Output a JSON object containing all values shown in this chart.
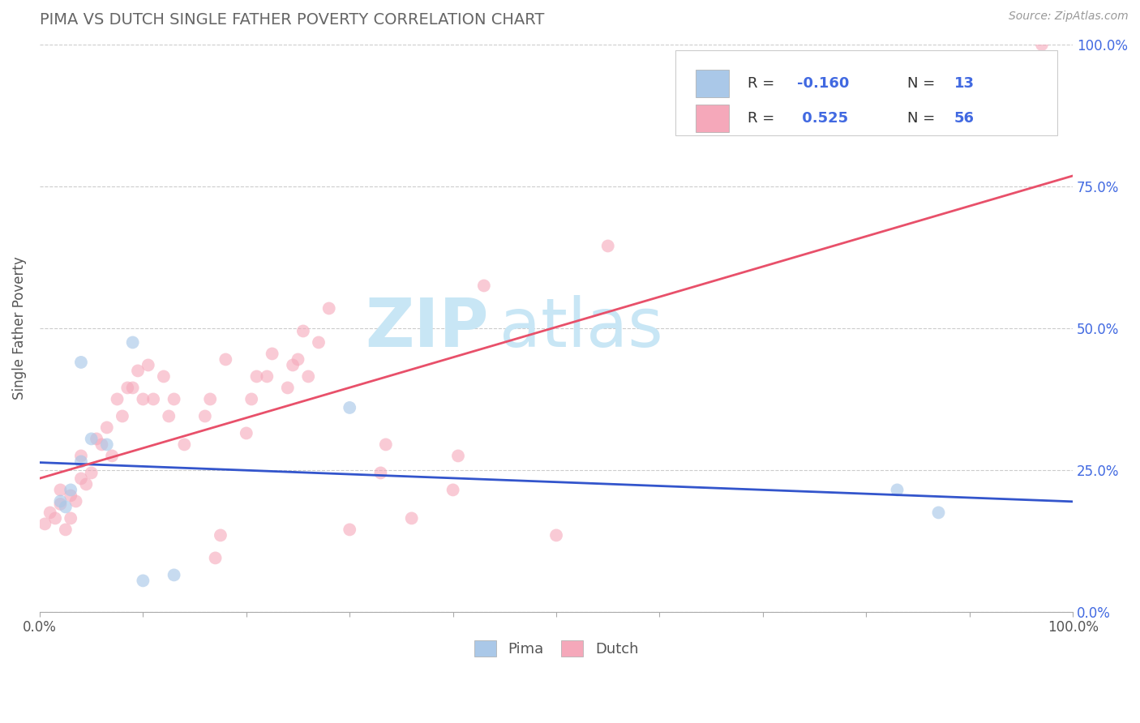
{
  "title": "PIMA VS DUTCH SINGLE FATHER POVERTY CORRELATION CHART",
  "source_text": "Source: ZipAtlas.com",
  "ylabel": "Single Father Poverty",
  "xlim": [
    0.0,
    1.0
  ],
  "ylim": [
    0.0,
    1.0
  ],
  "xtick_positions": [
    0.0,
    0.1,
    0.2,
    0.3,
    0.4,
    0.5,
    0.6,
    0.7,
    0.8,
    0.9,
    1.0
  ],
  "xtick_labels_show": [
    "0.0%",
    "",
    "",
    "",
    "",
    "",
    "",
    "",
    "",
    "",
    "100.0%"
  ],
  "ytick_positions": [
    0.0,
    0.25,
    0.5,
    0.75,
    1.0
  ],
  "ytick_labels_right": [
    "0.0%",
    "25.0%",
    "50.0%",
    "75.0%",
    "100.0%"
  ],
  "title_color": "#666666",
  "title_fontsize": 14,
  "background_color": "#ffffff",
  "grid_color": "#cccccc",
  "watermark_zip": "ZIP",
  "watermark_atlas": "atlas",
  "watermark_color": "#c8e6f5",
  "legend_R_pima": "-0.160",
  "legend_N_pima": "13",
  "legend_R_dutch": " 0.525",
  "legend_N_dutch": "56",
  "legend_value_color": "#4169e1",
  "legend_label_color": "#333333",
  "pima_color": "#aac8e8",
  "dutch_color": "#f5a8ba",
  "pima_line_color": "#3355cc",
  "dutch_line_color": "#e8506a",
  "marker_size": 130,
  "pima_alpha": 0.65,
  "dutch_alpha": 0.6,
  "right_tick_color": "#4169e1",
  "pima_scatter_x": [
    0.02,
    0.03,
    0.04,
    0.025,
    0.05,
    0.065,
    0.04,
    0.09,
    0.1,
    0.13,
    0.83,
    0.87,
    0.3
  ],
  "pima_scatter_y": [
    0.195,
    0.215,
    0.265,
    0.185,
    0.305,
    0.295,
    0.44,
    0.475,
    0.055,
    0.065,
    0.215,
    0.175,
    0.36
  ],
  "dutch_scatter_x": [
    0.005,
    0.01,
    0.015,
    0.02,
    0.02,
    0.025,
    0.03,
    0.03,
    0.035,
    0.04,
    0.04,
    0.045,
    0.05,
    0.055,
    0.06,
    0.065,
    0.07,
    0.075,
    0.08,
    0.085,
    0.09,
    0.095,
    0.1,
    0.105,
    0.11,
    0.12,
    0.125,
    0.13,
    0.14,
    0.16,
    0.165,
    0.17,
    0.175,
    0.18,
    0.2,
    0.205,
    0.21,
    0.22,
    0.225,
    0.24,
    0.245,
    0.25,
    0.255,
    0.26,
    0.27,
    0.28,
    0.3,
    0.33,
    0.335,
    0.36,
    0.4,
    0.405,
    0.43,
    0.5,
    0.55,
    0.97
  ],
  "dutch_scatter_y": [
    0.155,
    0.175,
    0.165,
    0.19,
    0.215,
    0.145,
    0.165,
    0.205,
    0.195,
    0.235,
    0.275,
    0.225,
    0.245,
    0.305,
    0.295,
    0.325,
    0.275,
    0.375,
    0.345,
    0.395,
    0.395,
    0.425,
    0.375,
    0.435,
    0.375,
    0.415,
    0.345,
    0.375,
    0.295,
    0.345,
    0.375,
    0.095,
    0.135,
    0.445,
    0.315,
    0.375,
    0.415,
    0.415,
    0.455,
    0.395,
    0.435,
    0.445,
    0.495,
    0.415,
    0.475,
    0.535,
    0.145,
    0.245,
    0.295,
    0.165,
    0.215,
    0.275,
    0.575,
    0.135,
    0.645,
    1.0
  ]
}
